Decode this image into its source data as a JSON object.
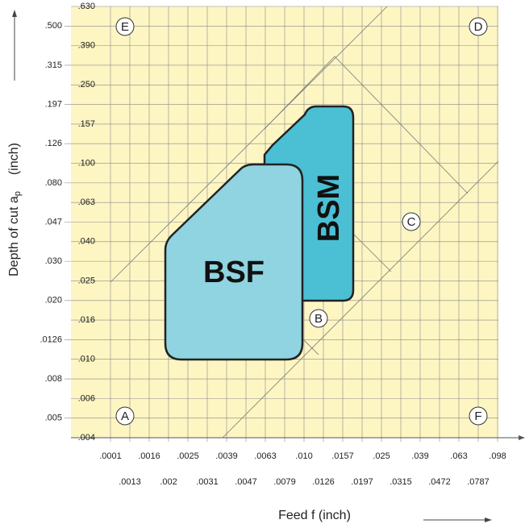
{
  "y_axis": {
    "title": "Depth of cut a",
    "subscript": "p",
    "unit": "(inch)",
    "ticks": [
      ".630",
      ".500",
      ".390",
      ".315",
      ".250",
      ".197",
      ".157",
      ".126",
      ".100",
      ".080",
      ".063",
      ".047",
      ".040",
      ".030",
      ".025",
      ".020",
      ".016",
      ".0126",
      ".010",
      ".008",
      ".006",
      ".005",
      ".004"
    ]
  },
  "x_axis": {
    "title": "Feed  f (inch)",
    "ticks": [
      ".0001",
      ".0013",
      ".0016",
      ".002",
      ".0025",
      ".0031",
      ".0039",
      ".0047",
      ".0063",
      ".0079",
      ".010",
      ".0126",
      ".0157",
      ".0197",
      ".025",
      ".0315",
      ".039",
      ".0472",
      ".063",
      ".0787",
      ".098"
    ]
  },
  "regions": [
    "BSF",
    "BSM"
  ],
  "points": [
    "A",
    "B",
    "C",
    "D",
    "E",
    "F"
  ]
}
